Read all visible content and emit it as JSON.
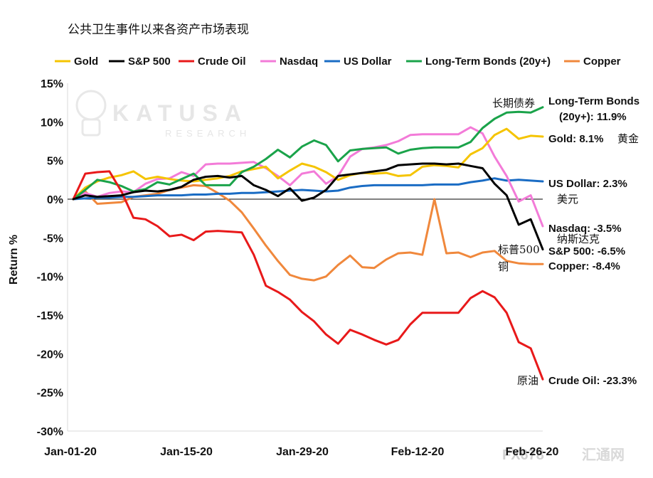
{
  "title": "公共卫生事件以来各资产市场表现",
  "watermark": {
    "brand": "KATUSA",
    "sub": "RESEARCH",
    "site_code": "FX678",
    "site_cn": "汇通网"
  },
  "chart_data": {
    "type": "line",
    "ylabel": "Return %",
    "ylim": [
      -30,
      15
    ],
    "yticks": [
      15,
      10,
      5,
      0,
      -5,
      -10,
      -15,
      -20,
      -25,
      -30
    ],
    "ytick_labels": [
      "15%",
      "10%",
      "5%",
      "0%",
      "-5%",
      "-10%",
      "-15%",
      "-20%",
      "-25%",
      "-30%"
    ],
    "xlim": [
      0,
      38
    ],
    "xticks": [
      {
        "x": 0,
        "label": "Jan-01-20"
      },
      {
        "x": 9.5,
        "label": "Jan-15-20"
      },
      {
        "x": 19,
        "label": "Jan-29-20"
      },
      {
        "x": 28.5,
        "label": "Feb-12-20"
      },
      {
        "x": 38,
        "label": "Feb-26-20"
      }
    ],
    "series": [
      {
        "name": "Gold",
        "color": "#f5c400",
        "values": [
          0,
          1.5,
          2.3,
          2.8,
          3.1,
          3.6,
          2.6,
          2.9,
          2.6,
          2.4,
          2.3,
          2.5,
          2.7,
          3.0,
          3.6,
          3.9,
          4.2,
          2.7,
          3.7,
          4.6,
          4.2,
          3.5,
          2.5,
          3.1,
          3.4,
          3.3,
          3.4,
          3.0,
          3.1,
          4.2,
          4.4,
          4.3,
          4.1,
          5.8,
          6.6,
          8.3,
          9.1,
          7.8,
          8.2,
          8.1
        ]
      },
      {
        "name": "S&P 500",
        "color": "#000000",
        "values": [
          0,
          0.5,
          0.3,
          0.4,
          0.5,
          0.9,
          1.1,
          1.0,
          1.2,
          1.6,
          2.5,
          2.9,
          3.0,
          2.8,
          3.0,
          1.8,
          1.2,
          0.4,
          1.4,
          -0.2,
          0.2,
          1.2,
          3.0,
          3.2,
          3.4,
          3.6,
          3.8,
          4.4,
          4.5,
          4.6,
          4.6,
          4.5,
          4.6,
          4.3,
          4.0,
          2.0,
          0.5,
          -3.3,
          -2.6,
          -6.5
        ]
      },
      {
        "name": "Crude Oil",
        "color": "#e8191a",
        "values": [
          0,
          3.3,
          3.5,
          3.6,
          1.0,
          -2.4,
          -2.6,
          -3.5,
          -4.8,
          -4.6,
          -5.3,
          -4.2,
          -4.1,
          -4.2,
          -4.3,
          -7.2,
          -11.2,
          -12.0,
          -13.0,
          -14.6,
          -15.8,
          -17.5,
          -18.7,
          -16.9,
          -17.5,
          -18.2,
          -18.8,
          -18.2,
          -16.2,
          -14.7,
          -14.7,
          -14.7,
          -14.7,
          -12.8,
          -11.9,
          -12.7,
          -14.7,
          -18.5,
          -19.3,
          -23.3
        ]
      },
      {
        "name": "Nasdaq",
        "color": "#f37bd8",
        "values": [
          0,
          0.8,
          0.3,
          0.8,
          1.0,
          0.9,
          2.0,
          2.6,
          2.7,
          3.5,
          3.0,
          4.5,
          4.6,
          4.6,
          4.7,
          4.8,
          4.0,
          3.0,
          1.8,
          3.3,
          3.6,
          2.0,
          3.0,
          5.5,
          6.5,
          6.7,
          7.0,
          7.5,
          8.3,
          8.4,
          8.4,
          8.4,
          8.4,
          9.3,
          8.5,
          5.5,
          3.0,
          -0.3,
          0.5,
          -3.5
        ]
      },
      {
        "name": "US Dollar",
        "color": "#1a6cc4",
        "values": [
          0,
          0.1,
          0.2,
          0.2,
          0.3,
          0.3,
          0.4,
          0.5,
          0.5,
          0.5,
          0.6,
          0.6,
          0.7,
          0.7,
          0.8,
          0.8,
          0.9,
          1.0,
          1.1,
          1.2,
          1.1,
          1.0,
          1.1,
          1.5,
          1.7,
          1.8,
          1.8,
          1.8,
          1.8,
          1.8,
          1.9,
          1.9,
          1.9,
          2.2,
          2.4,
          2.7,
          2.4,
          2.5,
          2.4,
          2.3
        ]
      },
      {
        "name": "Long-Term Bonds (20y+)",
        "color": "#1aa34a",
        "values": [
          0,
          1.2,
          2.5,
          2.2,
          1.7,
          1.0,
          1.3,
          2.2,
          1.9,
          2.6,
          3.3,
          1.8,
          1.8,
          1.8,
          3.5,
          4.2,
          5.2,
          6.4,
          5.4,
          6.8,
          7.6,
          7.0,
          4.9,
          6.3,
          6.5,
          6.6,
          6.7,
          5.9,
          6.4,
          6.6,
          6.7,
          6.7,
          6.7,
          7.4,
          9.2,
          10.4,
          11.2,
          11.3,
          11.2,
          11.9
        ]
      },
      {
        "name": "Copper",
        "color": "#f0883c",
        "values": [
          0,
          1.0,
          -0.6,
          -0.5,
          -0.4,
          0.3,
          0.5,
          0.7,
          1.2,
          1.5,
          1.8,
          1.7,
          0.8,
          -0.2,
          -1.7,
          -3.8,
          -6.0,
          -8.0,
          -9.8,
          -10.3,
          -10.5,
          -10.0,
          -8.5,
          -7.3,
          -8.8,
          -8.9,
          -7.8,
          -7.0,
          -6.9,
          -7.2,
          0.0,
          -7.0,
          -6.9,
          -7.5,
          -6.9,
          -6.7,
          -8.0,
          -8.3,
          -8.4,
          -8.4
        ]
      }
    ],
    "end_labels": [
      {
        "series": "Long-Term Bonds (20y+)",
        "lines": [
          "Long-Term Bonds",
          "(20y+): 11.9%"
        ],
        "cn": "长期债券"
      },
      {
        "series": "Gold",
        "lines": [
          "Gold: 8.1%"
        ],
        "cn": "黄金"
      },
      {
        "series": "US Dollar",
        "lines": [
          "US Dollar: 2.3%"
        ],
        "cn": "美元"
      },
      {
        "series": "Nasdaq",
        "lines": [
          "Nasdaq: -3.5%"
        ],
        "cn": "纳斯达克"
      },
      {
        "series": "S&P 500",
        "lines": [
          "S&P 500: -6.5%"
        ],
        "cn": "标普500"
      },
      {
        "series": "Copper",
        "lines": [
          "Copper: -8.4%"
        ],
        "cn": "铜"
      },
      {
        "series": "Crude Oil",
        "lines": [
          "Crude Oil: -23.3%"
        ],
        "cn": "原油"
      }
    ]
  }
}
